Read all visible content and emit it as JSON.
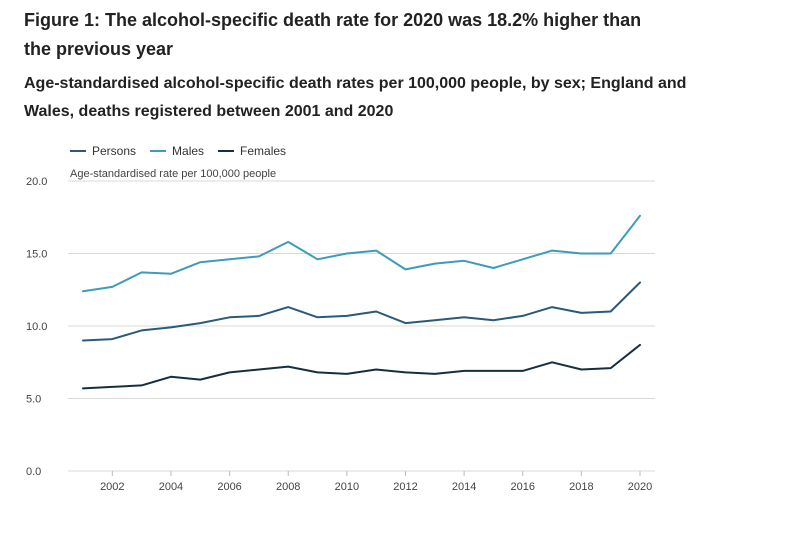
{
  "figure": {
    "title": "Figure 1: The alcohol-specific death rate for 2020 was 18.2% higher than the previous year",
    "subtitle": "Age-standardised alcohol-specific death rates per 100,000 people, by sex; England and Wales, deaths registered between 2001 and 2020"
  },
  "chart_data": {
    "type": "line",
    "title": "",
    "xlabel": "",
    "ylabel": "Age-standardised rate per 100,000 people",
    "x": [
      2001,
      2002,
      2003,
      2004,
      2005,
      2006,
      2007,
      2008,
      2009,
      2010,
      2011,
      2012,
      2013,
      2014,
      2015,
      2016,
      2017,
      2018,
      2019,
      2020
    ],
    "xticks": [
      "2002",
      "2004",
      "2006",
      "2008",
      "2010",
      "2012",
      "2014",
      "2016",
      "2018",
      "2020"
    ],
    "yticks": [
      "0.0",
      "5.0",
      "10.0",
      "15.0",
      "20.0"
    ],
    "ylim": [
      0,
      20
    ],
    "grid": true,
    "legend_position": "top-left",
    "series": [
      {
        "name": "Persons",
        "color": "#2a5a7a",
        "values": [
          9.0,
          9.1,
          9.7,
          9.9,
          10.2,
          10.6,
          10.7,
          11.3,
          10.6,
          10.7,
          11.0,
          10.2,
          10.4,
          10.6,
          10.4,
          10.7,
          11.3,
          10.9,
          11.0,
          13.0
        ]
      },
      {
        "name": "Males",
        "color": "#3d9bbb",
        "values": [
          12.4,
          12.7,
          13.7,
          13.6,
          14.4,
          14.6,
          14.8,
          15.8,
          14.6,
          15.0,
          15.2,
          13.9,
          14.3,
          14.5,
          14.0,
          14.6,
          15.2,
          15.0,
          15.0,
          17.6
        ]
      },
      {
        "name": "Females",
        "color": "#13303f",
        "values": [
          5.7,
          5.8,
          5.9,
          6.5,
          6.3,
          6.8,
          7.0,
          7.2,
          6.8,
          6.7,
          7.0,
          6.8,
          6.7,
          6.9,
          6.9,
          6.9,
          7.5,
          7.0,
          7.1,
          8.7
        ]
      }
    ]
  }
}
